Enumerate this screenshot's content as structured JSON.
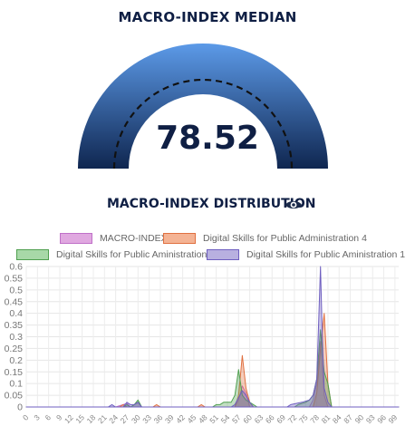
{
  "gauge": {
    "title": "MACRO-INDEX MEDIAN",
    "value": "78.52",
    "colors": {
      "top": "#5c9ae8",
      "bottom": "#0f2650"
    }
  },
  "distribution": {
    "title": "MACRO-INDEX DISTRIBUTION",
    "icon": "eye-icon"
  },
  "legend": [
    {
      "label": "MACRO-INDEX",
      "fill": "#e0a8e0",
      "stroke": "#c070c8"
    },
    {
      "label": "Digital Skills for Public Administration 4",
      "fill": "#f4b394",
      "stroke": "#e07040"
    },
    {
      "label": "Digital Skills for Public Aministration 3",
      "fill": "#a8d8a8",
      "stroke": "#50a050"
    },
    {
      "label": "Digital Skills for Public Aministration 1",
      "fill": "#b8b0e0",
      "stroke": "#6f5fc0"
    }
  ],
  "chart_data": {
    "type": "area",
    "x_ticks": [
      0,
      3,
      6,
      9,
      12,
      15,
      18,
      21,
      24,
      27,
      30,
      33,
      36,
      39,
      42,
      45,
      48,
      51,
      54,
      57,
      60,
      63,
      66,
      69,
      72,
      75,
      78,
      81,
      84,
      87,
      90,
      93,
      96,
      99
    ],
    "y_ticks": [
      "0",
      "0.05",
      "0.1",
      "0.15",
      "0.2",
      "0.25",
      "0.3",
      "0.35",
      "0.4",
      "0.45",
      "0.5",
      "0.55",
      "0.6"
    ],
    "xlim": [
      0,
      100
    ],
    "ylim": [
      0,
      0.6
    ],
    "grid": true,
    "legend_position": "top",
    "series": [
      {
        "name": "MACRO-INDEX",
        "color": "#c070c8",
        "points": [
          [
            0,
            0
          ],
          [
            24,
            0
          ],
          [
            26,
            0.01
          ],
          [
            27,
            0.015
          ],
          [
            28,
            0
          ],
          [
            29,
            0.01
          ],
          [
            30,
            0.02
          ],
          [
            31,
            0
          ],
          [
            56,
            0
          ],
          [
            57,
            0.03
          ],
          [
            58,
            0.09
          ],
          [
            59,
            0.06
          ],
          [
            60,
            0
          ],
          [
            76,
            0
          ],
          [
            77,
            0.03
          ],
          [
            78,
            0.1
          ],
          [
            79,
            0.28
          ],
          [
            80,
            0.05
          ],
          [
            81,
            0
          ],
          [
            100,
            0
          ]
        ]
      },
      {
        "name": "Digital Skills for Public Administration 4",
        "color": "#e07040",
        "points": [
          [
            0,
            0
          ],
          [
            25,
            0
          ],
          [
            26,
            0.01
          ],
          [
            27,
            0
          ],
          [
            34,
            0
          ],
          [
            35,
            0.01
          ],
          [
            36,
            0
          ],
          [
            46,
            0
          ],
          [
            47,
            0.01
          ],
          [
            48,
            0
          ],
          [
            56,
            0
          ],
          [
            57,
            0.05
          ],
          [
            58,
            0.22
          ],
          [
            59,
            0.08
          ],
          [
            60,
            0.02
          ],
          [
            61,
            0
          ],
          [
            77,
            0
          ],
          [
            78,
            0.06
          ],
          [
            79,
            0.25
          ],
          [
            80,
            0.4
          ],
          [
            81,
            0.1
          ],
          [
            82,
            0
          ],
          [
            100,
            0
          ]
        ]
      },
      {
        "name": "Digital Skills for Public Aministration 3",
        "color": "#50a050",
        "points": [
          [
            0,
            0
          ],
          [
            26,
            0
          ],
          [
            27,
            0.01
          ],
          [
            28,
            0
          ],
          [
            29,
            0.01
          ],
          [
            30,
            0.03
          ],
          [
            31,
            0
          ],
          [
            50,
            0
          ],
          [
            51,
            0.01
          ],
          [
            52,
            0.01
          ],
          [
            53,
            0.02
          ],
          [
            55,
            0.02
          ],
          [
            56,
            0.05
          ],
          [
            57,
            0.16
          ],
          [
            58,
            0.05
          ],
          [
            59,
            0.03
          ],
          [
            60,
            0.02
          ],
          [
            61,
            0.01
          ],
          [
            62,
            0
          ],
          [
            72,
            0
          ],
          [
            73,
            0.01
          ],
          [
            75,
            0.02
          ],
          [
            76,
            0.03
          ],
          [
            77,
            0.05
          ],
          [
            78,
            0.12
          ],
          [
            79,
            0.33
          ],
          [
            80,
            0.15
          ],
          [
            81,
            0.1
          ],
          [
            82,
            0
          ],
          [
            100,
            0
          ]
        ]
      },
      {
        "name": "Digital Skills for Public Aministration 1",
        "color": "#6f5fc0",
        "points": [
          [
            0,
            0
          ],
          [
            22,
            0
          ],
          [
            23,
            0.01
          ],
          [
            24,
            0
          ],
          [
            26,
            0
          ],
          [
            27,
            0.02
          ],
          [
            28,
            0.01
          ],
          [
            29,
            0.01
          ],
          [
            30,
            0.02
          ],
          [
            31,
            0
          ],
          [
            55,
            0
          ],
          [
            56,
            0.01
          ],
          [
            57,
            0.04
          ],
          [
            58,
            0.07
          ],
          [
            59,
            0.05
          ],
          [
            60,
            0.02
          ],
          [
            61,
            0
          ],
          [
            70,
            0
          ],
          [
            71,
            0.01
          ],
          [
            74,
            0.02
          ],
          [
            76,
            0.03
          ],
          [
            77,
            0.05
          ],
          [
            78,
            0.12
          ],
          [
            79,
            0.6
          ],
          [
            79.5,
            0.3
          ],
          [
            80,
            0.08
          ],
          [
            81,
            0.02
          ],
          [
            82,
            0
          ],
          [
            100,
            0
          ]
        ]
      }
    ]
  }
}
